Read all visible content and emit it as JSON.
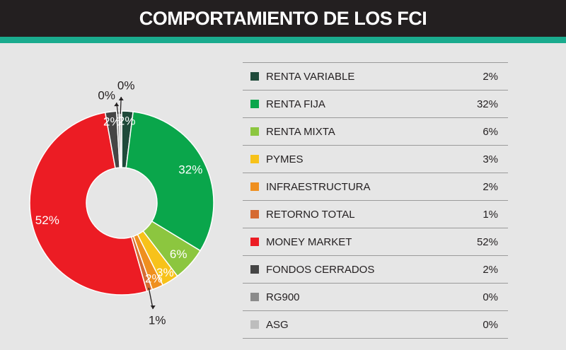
{
  "title": "COMPORTAMIENTO DE LOS FCI",
  "colors": {
    "header_bg": "#231f20",
    "accent_bar": "#1aab8e",
    "background": "#e6e6e6"
  },
  "chart_data": {
    "type": "pie",
    "title": "COMPORTAMIENTO DE LOS FCI",
    "donut": true,
    "slices": [
      {
        "label": "RENTA VARIABLE",
        "value": 2,
        "display": "2%",
        "color": "#1f4a3a"
      },
      {
        "label": "RENTA FIJA",
        "value": 32,
        "display": "32%",
        "color": "#0aa64b"
      },
      {
        "label": "RENTA MIXTA",
        "value": 6,
        "display": "6%",
        "color": "#8cc63f"
      },
      {
        "label": "PYMES",
        "value": 3,
        "display": "3%",
        "color": "#f7c21a"
      },
      {
        "label": "INFRAESTRUCTURA",
        "value": 2,
        "display": "2%",
        "color": "#ef8f1f"
      },
      {
        "label": "RETORNO TOTAL",
        "value": 1,
        "display": "1%",
        "color": "#d56a32"
      },
      {
        "label": "MONEY MARKET",
        "value": 52,
        "display": "52%",
        "color": "#ec1c24"
      },
      {
        "label": "FONDOS CERRADOS",
        "value": 2,
        "display": "2%",
        "color": "#454545"
      },
      {
        "label": "RG900",
        "value": 0,
        "display": "0%",
        "color": "#8b8b8b"
      },
      {
        "label": "ASG",
        "value": 0,
        "display": "0%",
        "color": "#bdbdbd"
      }
    ],
    "legend_placement": "right"
  }
}
